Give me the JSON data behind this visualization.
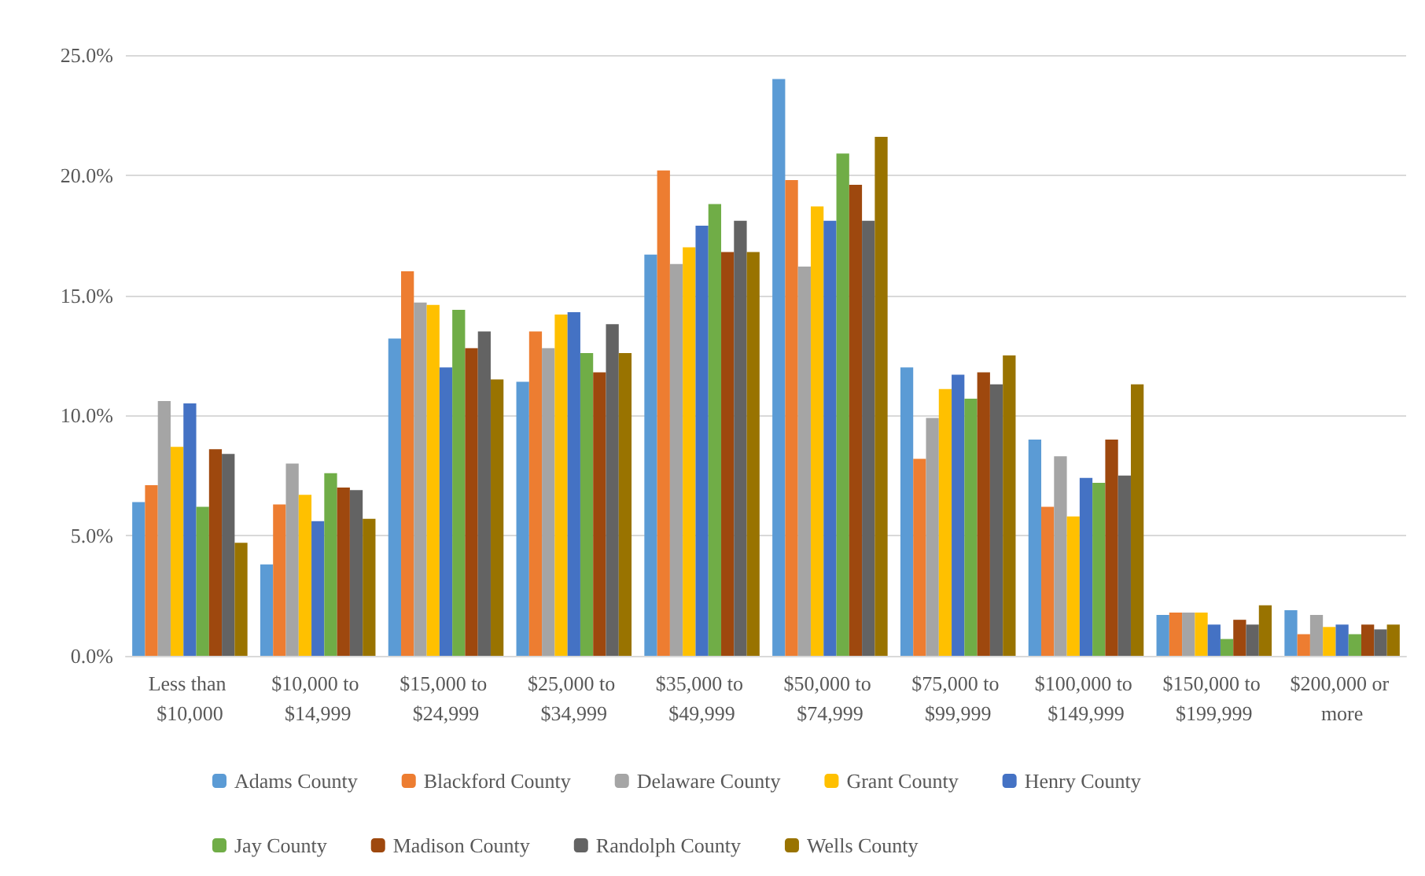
{
  "chart_data": {
    "type": "bar",
    "categories": [
      "Less than $10,000",
      "$10,000 to $14,999",
      "$15,000 to $24,999",
      "$25,000 to $34,999",
      "$35,000 to $49,999",
      "$50,000 to $74,999",
      "$75,000 to $99,999",
      "$100,000 to $149,999",
      "$150,000 to $199,999",
      "$200,000 or more"
    ],
    "series": [
      {
        "name": "Adams County",
        "color": "#5b9bd5",
        "values": [
          6.4,
          3.8,
          13.2,
          11.4,
          16.7,
          24.0,
          12.0,
          9.0,
          1.7,
          1.9
        ]
      },
      {
        "name": "Blackford County",
        "color": "#ed7d31",
        "values": [
          7.1,
          6.3,
          16.0,
          13.5,
          20.2,
          19.8,
          8.2,
          6.2,
          1.8,
          0.9
        ]
      },
      {
        "name": "Delaware County",
        "color": "#a5a5a5",
        "values": [
          10.6,
          8.0,
          14.7,
          12.8,
          16.3,
          16.2,
          9.9,
          8.3,
          1.8,
          1.7
        ]
      },
      {
        "name": "Grant County",
        "color": "#ffc000",
        "values": [
          8.7,
          6.7,
          14.6,
          14.2,
          17.0,
          18.7,
          11.1,
          5.8,
          1.8,
          1.2
        ]
      },
      {
        "name": "Henry County",
        "color": "#4472c4",
        "values": [
          10.5,
          5.6,
          12.0,
          14.3,
          17.9,
          18.1,
          11.7,
          7.4,
          1.3,
          1.3
        ]
      },
      {
        "name": "Jay County",
        "color": "#70ad47",
        "values": [
          6.2,
          7.6,
          14.4,
          12.6,
          18.8,
          20.9,
          10.7,
          7.2,
          0.7,
          0.9
        ]
      },
      {
        "name": "Madison County",
        "color": "#9e480e",
        "values": [
          8.6,
          7.0,
          12.8,
          11.8,
          16.8,
          19.6,
          11.8,
          9.0,
          1.5,
          1.3
        ]
      },
      {
        "name": "Randolph County",
        "color": "#636363",
        "values": [
          8.4,
          6.9,
          13.5,
          13.8,
          18.1,
          18.1,
          11.3,
          7.5,
          1.3,
          1.1
        ]
      },
      {
        "name": "Wells County",
        "color": "#997300",
        "values": [
          4.7,
          5.7,
          11.5,
          12.6,
          16.8,
          21.6,
          12.5,
          11.3,
          2.1,
          1.3
        ]
      }
    ],
    "ylim": [
      0,
      25
    ],
    "yticks": [
      {
        "value": 0,
        "label": "0.0%"
      },
      {
        "value": 5,
        "label": "5.0%"
      },
      {
        "value": 10,
        "label": "10.0%"
      },
      {
        "value": 15,
        "label": "15.0%"
      },
      {
        "value": 20,
        "label": "20.0%"
      },
      {
        "value": 25,
        "label": "25.0%"
      }
    ],
    "grid": "y",
    "legend": "bottom"
  }
}
